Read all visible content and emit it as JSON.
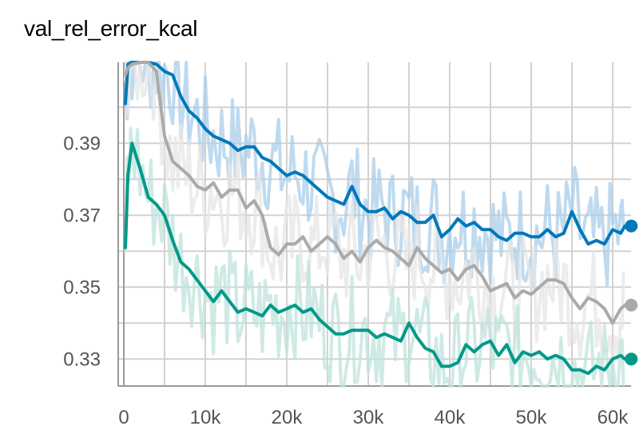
{
  "chart_data": {
    "type": "line",
    "title": "val_rel_error_kcal",
    "xlabel": "",
    "ylabel": "",
    "x_ticks": [
      0,
      10000,
      20000,
      30000,
      40000,
      50000,
      60000
    ],
    "x_tick_labels": [
      "0",
      "10k",
      "20k",
      "30k",
      "40k",
      "50k",
      "60k"
    ],
    "y_ticks": [
      0.33,
      0.35,
      0.37,
      0.39
    ],
    "y_tick_labels": [
      "0.33",
      "0.35",
      "0.37",
      "0.39"
    ],
    "xlim": [
      0,
      62500
    ],
    "ylim": [
      0.3225,
      0.4125
    ],
    "grid": true,
    "legend": "none",
    "series": [
      {
        "color": "#0077bb",
        "raw_color": "#a9cde9",
        "x": [
          200,
          500,
          1000,
          2000,
          3000,
          4000,
          5000,
          6000,
          7000,
          8000,
          9000,
          10000,
          11000,
          12000,
          13000,
          14000,
          15000,
          16000,
          17000,
          18000,
          19000,
          20000,
          21000,
          22000,
          23000,
          24000,
          25000,
          26000,
          27000,
          28000,
          29000,
          30000,
          31000,
          32000,
          33000,
          34000,
          35000,
          36000,
          37000,
          38000,
          39000,
          40000,
          41000,
          42000,
          43000,
          44000,
          45000,
          46000,
          47000,
          48000,
          49000,
          50000,
          51000,
          52000,
          53000,
          54000,
          55000,
          56000,
          57000,
          58000,
          59000,
          60000,
          61000,
          61500
        ],
        "y": [
          0.401,
          0.412,
          0.415,
          0.414,
          0.413,
          0.412,
          0.41,
          0.409,
          0.403,
          0.399,
          0.397,
          0.394,
          0.392,
          0.391,
          0.39,
          0.388,
          0.389,
          0.389,
          0.386,
          0.385,
          0.383,
          0.381,
          0.382,
          0.381,
          0.379,
          0.377,
          0.375,
          0.374,
          0.373,
          0.378,
          0.373,
          0.371,
          0.371,
          0.372,
          0.369,
          0.371,
          0.37,
          0.368,
          0.368,
          0.37,
          0.364,
          0.366,
          0.369,
          0.367,
          0.368,
          0.366,
          0.366,
          0.364,
          0.363,
          0.365,
          0.365,
          0.364,
          0.364,
          0.366,
          0.364,
          0.365,
          0.371,
          0.366,
          0.362,
          0.363,
          0.362,
          0.366,
          0.365,
          0.367
        ]
      },
      {
        "color": "#aaaaaa",
        "raw_color": "#e6e6e6",
        "x": [
          200,
          500,
          1000,
          2000,
          3000,
          4000,
          5000,
          6000,
          7000,
          8000,
          9000,
          10000,
          11000,
          12000,
          13000,
          14000,
          15000,
          16000,
          17000,
          18000,
          19000,
          20000,
          21000,
          22000,
          23000,
          24000,
          25000,
          26000,
          27000,
          28000,
          29000,
          30000,
          31000,
          32000,
          33000,
          34000,
          35000,
          36000,
          37000,
          38000,
          39000,
          40000,
          41000,
          42000,
          43000,
          44000,
          45000,
          46000,
          47000,
          48000,
          49000,
          50000,
          51000,
          52000,
          53000,
          54000,
          55000,
          56000,
          57000,
          58000,
          59000,
          60000,
          61000,
          61500
        ],
        "y": [
          0.409,
          0.411,
          0.412,
          0.413,
          0.413,
          0.41,
          0.392,
          0.385,
          0.383,
          0.381,
          0.378,
          0.377,
          0.379,
          0.375,
          0.377,
          0.377,
          0.372,
          0.374,
          0.37,
          0.361,
          0.359,
          0.362,
          0.362,
          0.364,
          0.36,
          0.362,
          0.364,
          0.362,
          0.358,
          0.36,
          0.357,
          0.361,
          0.363,
          0.361,
          0.36,
          0.358,
          0.356,
          0.361,
          0.358,
          0.356,
          0.354,
          0.355,
          0.352,
          0.355,
          0.356,
          0.353,
          0.349,
          0.35,
          0.351,
          0.347,
          0.349,
          0.348,
          0.35,
          0.352,
          0.352,
          0.351,
          0.347,
          0.344,
          0.347,
          0.346,
          0.344,
          0.34,
          0.344,
          0.345
        ]
      },
      {
        "color": "#009988",
        "raw_color": "#bfe3dc",
        "x": [
          200,
          500,
          1000,
          2000,
          3000,
          4000,
          5000,
          6000,
          7000,
          8000,
          9000,
          10000,
          11000,
          12000,
          13000,
          14000,
          15000,
          16000,
          17000,
          18000,
          19000,
          20000,
          21000,
          22000,
          23000,
          24000,
          25000,
          26000,
          27000,
          28000,
          29000,
          30000,
          31000,
          32000,
          33000,
          34000,
          35000,
          36000,
          37000,
          38000,
          39000,
          40000,
          41000,
          42000,
          43000,
          44000,
          45000,
          46000,
          47000,
          48000,
          49000,
          50000,
          51000,
          52000,
          53000,
          54000,
          55000,
          56000,
          57000,
          58000,
          59000,
          60000,
          61000,
          61500
        ],
        "y": [
          0.361,
          0.381,
          0.39,
          0.383,
          0.375,
          0.373,
          0.37,
          0.363,
          0.357,
          0.355,
          0.352,
          0.349,
          0.346,
          0.349,
          0.346,
          0.343,
          0.344,
          0.343,
          0.342,
          0.345,
          0.343,
          0.344,
          0.345,
          0.343,
          0.344,
          0.341,
          0.339,
          0.337,
          0.337,
          0.338,
          0.338,
          0.338,
          0.336,
          0.337,
          0.336,
          0.335,
          0.34,
          0.336,
          0.333,
          0.332,
          0.328,
          0.328,
          0.329,
          0.334,
          0.332,
          0.334,
          0.335,
          0.331,
          0.334,
          0.329,
          0.332,
          0.331,
          0.332,
          0.33,
          0.331,
          0.33,
          0.327,
          0.327,
          0.326,
          0.328,
          0.327,
          0.33,
          0.331,
          0.33
        ]
      }
    ]
  }
}
